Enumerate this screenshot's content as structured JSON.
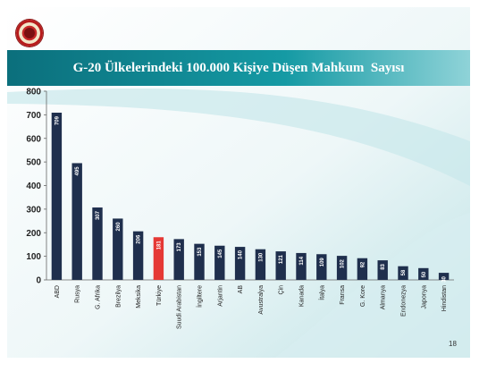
{
  "slide": {
    "title": "G-20 Ülkelerindeki 100.000 Kişiye Düşen Mahkum  Sayısı",
    "page_number": "18",
    "logo": "court-seal-icon"
  },
  "colors": {
    "bar": "#1f2f4d",
    "highlight_bar": "#e53935",
    "banner": "#0e8a94",
    "banner_light": "#58c0c8",
    "slide_bg": "#e4f1f2"
  },
  "chart_data": {
    "type": "bar",
    "title": "G-20 Ülkelerindeki 100.000 Kişiye Düşen Mahkum  Sayısı",
    "categories": [
      "ABD",
      "Rusya",
      "G. Afrika",
      "Brezilya",
      "Meksika",
      "Türkiye",
      "Suudi Arabistan",
      "İngiltere",
      "Arjantin",
      "AB",
      "Avustralya",
      "Çin",
      "Kanada",
      "İtalya",
      "Fransa",
      "G. Kore",
      "Almanya",
      "Endonezya",
      "Japonya",
      "Hindistan"
    ],
    "values": [
      709,
      495,
      307,
      260,
      206,
      181,
      173,
      153,
      145,
      140,
      130,
      121,
      114,
      109,
      102,
      92,
      83,
      58,
      50,
      30
    ],
    "data_labels": [
      "709",
      "495",
      "307",
      "260",
      "206",
      "181",
      "173",
      "153",
      "145",
      "140",
      "130",
      "121",
      "114",
      "109",
      "102",
      "92",
      "83",
      "58",
      "50",
      "30"
    ],
    "highlight": "Türkiye",
    "ylim": [
      0,
      800
    ],
    "yticks": [
      0,
      100,
      200,
      300,
      400,
      500,
      600,
      700,
      800
    ],
    "ytick_labels": [
      "0",
      "100",
      "200",
      "300",
      "400",
      "500",
      "600",
      "700",
      "800"
    ],
    "xlabel": "",
    "ylabel": "",
    "grid": false,
    "legend": "none"
  }
}
